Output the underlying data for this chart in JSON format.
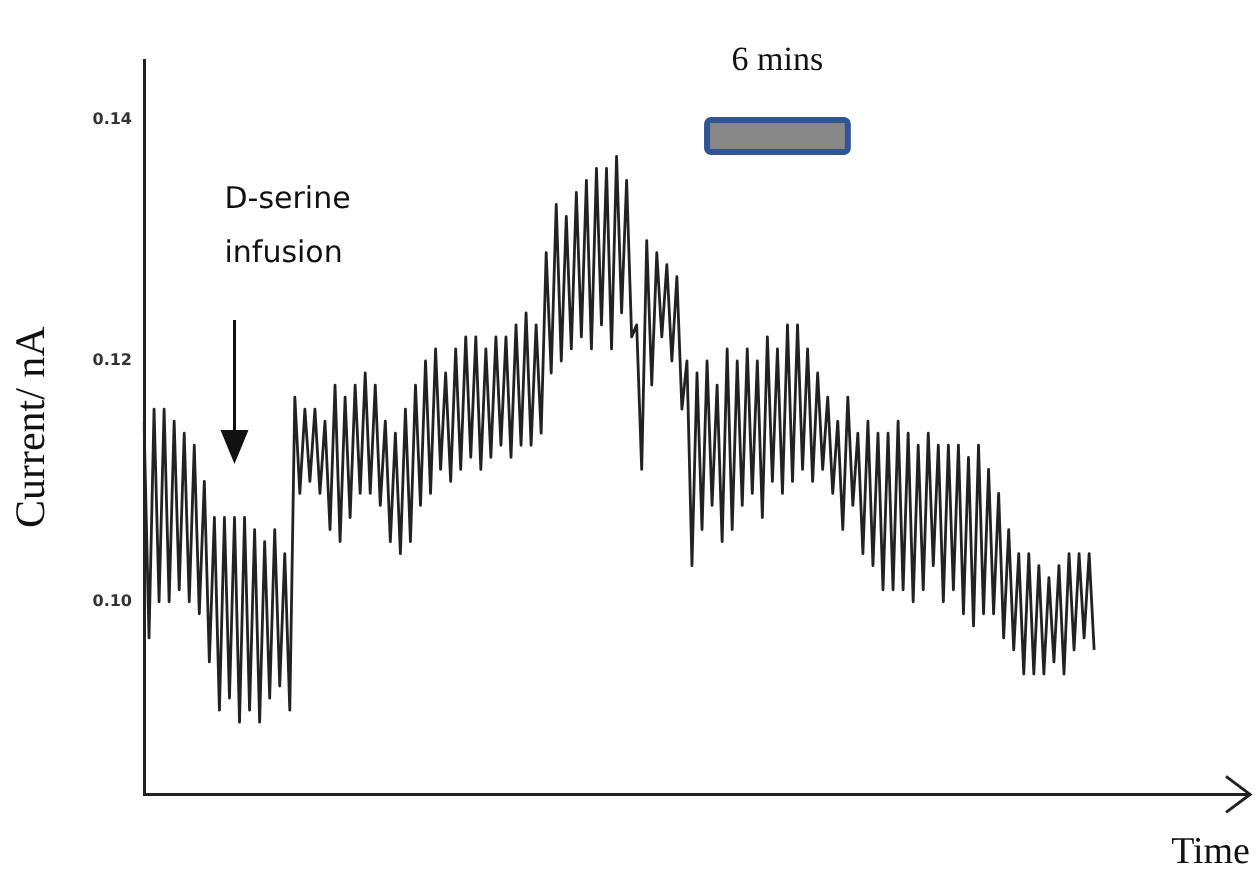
{
  "chart_data": {
    "type": "line",
    "xlabel": "Time",
    "ylabel": "Current/ nA",
    "annotations": [
      "6 mins",
      "D-serine infusion"
    ],
    "categories": [
      null,
      null,
      null,
      null,
      null,
      null,
      null,
      null,
      null,
      null,
      null,
      null,
      null,
      null,
      null,
      null,
      null,
      null,
      null,
      null,
      null,
      null,
      null,
      null,
      null,
      null,
      null,
      null,
      null,
      null,
      null,
      null,
      null,
      null,
      null,
      null,
      null,
      null,
      null,
      null,
      null,
      null,
      null,
      null,
      null,
      null,
      null,
      null,
      null,
      null,
      null,
      null,
      null,
      null,
      null,
      null,
      null,
      null,
      null,
      null,
      null,
      null,
      null,
      null,
      null,
      null,
      null,
      null,
      null,
      null,
      null,
      null,
      null,
      null,
      null,
      null,
      null,
      null,
      null,
      null,
      null,
      null,
      null,
      null,
      null,
      null,
      null,
      null,
      null,
      null,
      null,
      null,
      null,
      null,
      null,
      null,
      null,
      null,
      null,
      null,
      null,
      null,
      null,
      null,
      null,
      null,
      null,
      null,
      null,
      null,
      null,
      null,
      null,
      null,
      null,
      null,
      null,
      null,
      null,
      null,
      null,
      null,
      null,
      null,
      null,
      null,
      null,
      null,
      null,
      null,
      null,
      null,
      null,
      null,
      null,
      null,
      null,
      null,
      null,
      null,
      null,
      null,
      null,
      null,
      null,
      null,
      null,
      null,
      null,
      null,
      null,
      null,
      null,
      null,
      null,
      null,
      null,
      null,
      null,
      null,
      null,
      null,
      null,
      null,
      null,
      null,
      null,
      null,
      null,
      null,
      null,
      null,
      null,
      null,
      null,
      null,
      null,
      null,
      null,
      null,
      null,
      null,
      null,
      null,
      null,
      null,
      null,
      null,
      null,
      null,
      null,
      null,
      null,
      null,
      null,
      null,
      null,
      null,
      null,
      null,
      null,
      null,
      null,
      null,
      null,
      null,
      null,
      null,
      null,
      null,
      null,
      null,
      null,
      null,
      null,
      null,
      null,
      null,
      null,
      null,
      null
    ],
    "series": [
      {
        "color": "#222222",
        "values": [
          0.115,
          0.097,
          0.116,
          0.1,
          0.116,
          0.1,
          0.115,
          0.101,
          0.114,
          0.1,
          0.113,
          0.099,
          0.11,
          0.095,
          0.107,
          0.091,
          0.107,
          0.092,
          0.107,
          0.09,
          0.107,
          0.091,
          0.106,
          0.09,
          0.105,
          0.092,
          0.106,
          0.093,
          0.104,
          0.091,
          0.117,
          0.109,
          0.116,
          0.11,
          0.116,
          0.109,
          0.115,
          0.106,
          0.118,
          0.105,
          0.117,
          0.107,
          0.118,
          0.109,
          0.119,
          0.109,
          0.118,
          0.108,
          0.115,
          0.105,
          0.114,
          0.104,
          0.116,
          0.105,
          0.118,
          0.108,
          0.12,
          0.109,
          0.121,
          0.111,
          0.119,
          0.11,
          0.121,
          0.111,
          0.122,
          0.112,
          0.122,
          0.111,
          0.121,
          0.112,
          0.122,
          0.113,
          0.122,
          0.112,
          0.123,
          0.113,
          0.124,
          0.113,
          0.123,
          0.114,
          0.129,
          0.119,
          0.133,
          0.12,
          0.132,
          0.121,
          0.134,
          0.122,
          0.135,
          0.121,
          0.136,
          0.123,
          0.136,
          0.121,
          0.137,
          0.124,
          0.135,
          0.122,
          0.123,
          0.111,
          0.13,
          0.118,
          0.129,
          0.122,
          0.128,
          0.12,
          0.127,
          0.116,
          0.12,
          0.103,
          0.119,
          0.106,
          0.12,
          0.108,
          0.118,
          0.105,
          0.121,
          0.106,
          0.12,
          0.108,
          0.121,
          0.109,
          0.12,
          0.107,
          0.122,
          0.11,
          0.121,
          0.109,
          0.123,
          0.11,
          0.123,
          0.111,
          0.121,
          0.11,
          0.119,
          0.111,
          0.117,
          0.109,
          0.115,
          0.106,
          0.117,
          0.108,
          0.114,
          0.104,
          0.115,
          0.103,
          0.114,
          0.101,
          0.114,
          0.101,
          0.115,
          0.101,
          0.114,
          0.1,
          0.113,
          0.101,
          0.114,
          0.103,
          0.113,
          0.1,
          0.113,
          0.101,
          0.113,
          0.099,
          0.112,
          0.098,
          0.113,
          0.099,
          0.111,
          0.099,
          0.109,
          0.097,
          0.106,
          0.096,
          0.104,
          0.094,
          0.104,
          0.094,
          0.103,
          0.094,
          0.102,
          0.095,
          0.103,
          0.094,
          0.104,
          0.096,
          0.104,
          0.097,
          0.104,
          0.096,
          null,
          null,
          null,
          null,
          null,
          null,
          null,
          null,
          null,
          null,
          null,
          null,
          null,
          null,
          null,
          null,
          null,
          null,
          null,
          null,
          null,
          null,
          null,
          null,
          null,
          null,
          null,
          null,
          null,
          null,
          null
        ]
      }
    ],
    "ylim": [
      0.084,
      0.145
    ],
    "yticks": [
      0.14,
      0.12,
      {
        "value": 0.1,
        "label": "0.10"
      }
    ],
    "grid": false,
    "legend": false,
    "tick_labels": "y",
    "marker": "none",
    "line_style": "solid"
  }
}
